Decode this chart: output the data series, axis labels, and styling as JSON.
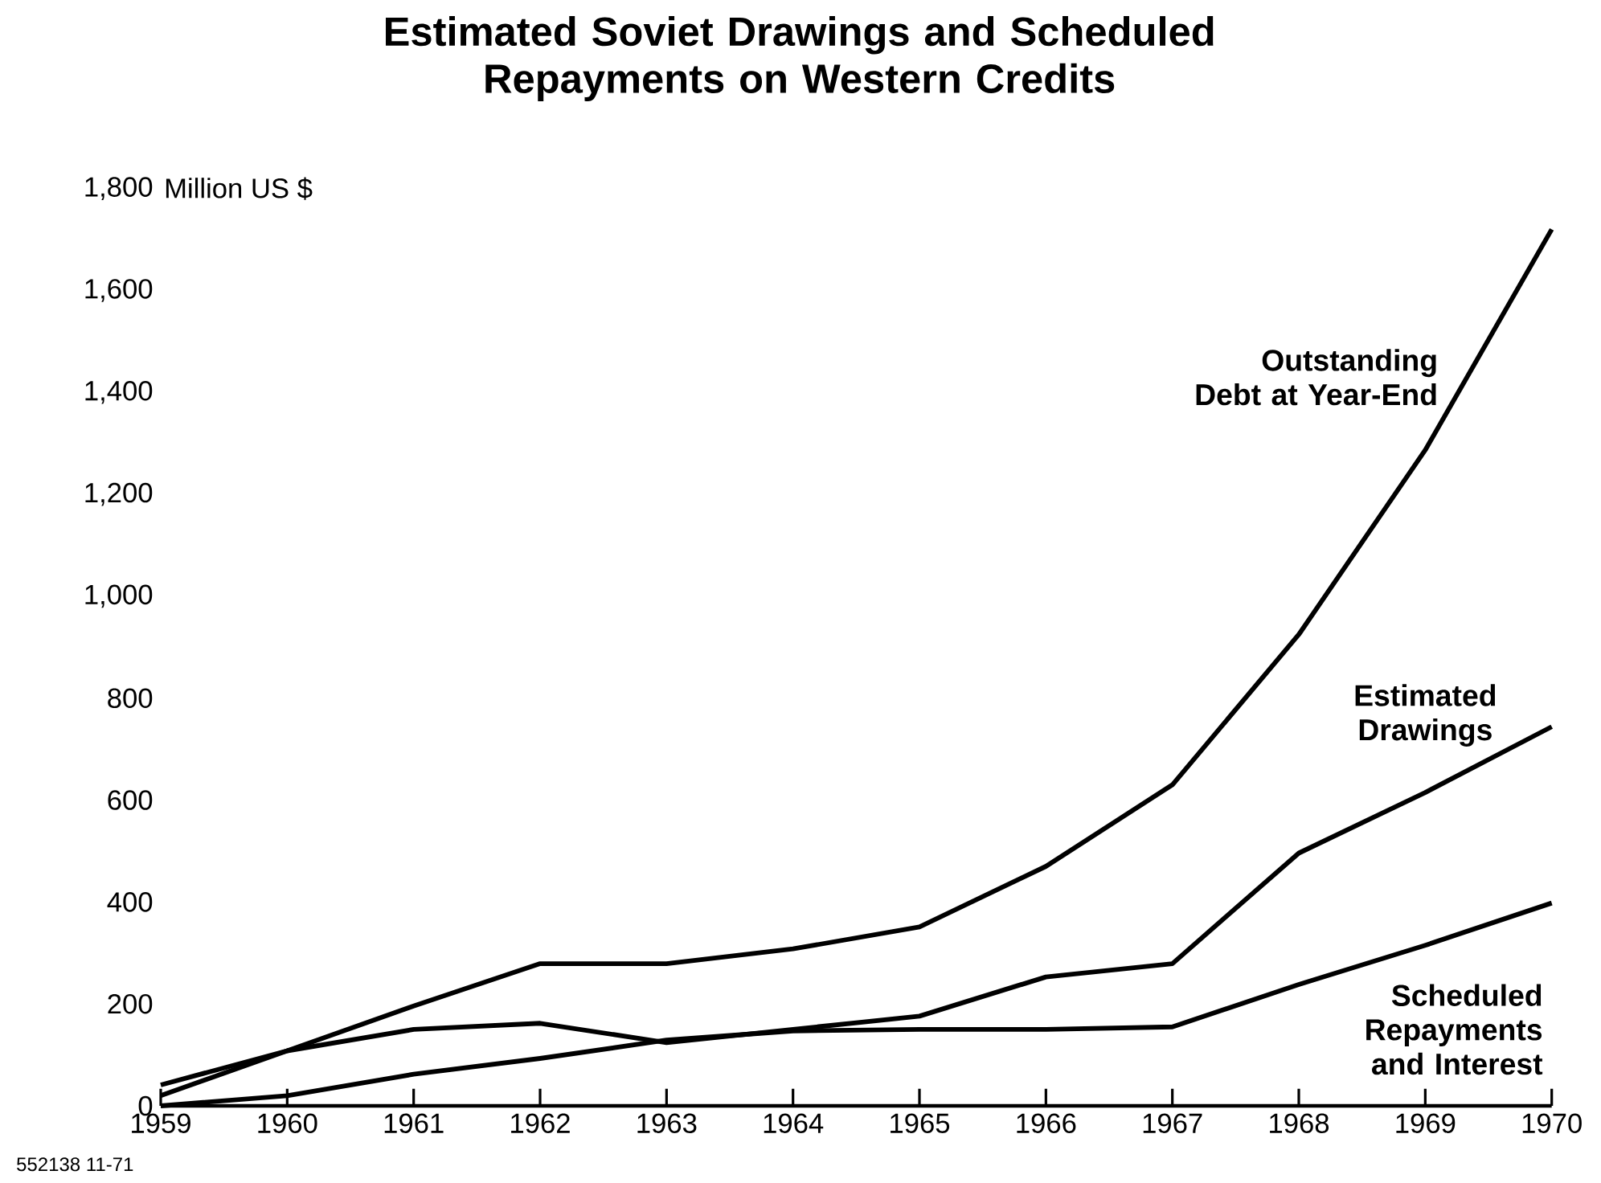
{
  "chart_data": {
    "type": "line",
    "title": "Estimated Soviet Drawings and Scheduled Repayments on Western Credits",
    "ylabel": "Million US $",
    "x": [
      1959,
      1960,
      1961,
      1962,
      1963,
      1964,
      1965,
      1966,
      1967,
      1968,
      1969,
      1970
    ],
    "series": [
      {
        "name": "Outstanding Debt at Year-End",
        "color": "#000000",
        "values": [
          41,
          108,
          196,
          279,
          279,
          308,
          351,
          470,
          630,
          925,
          1287,
          1720
        ]
      },
      {
        "name": "Estimated Drawings",
        "color": "#000000",
        "values": [
          20,
          108,
          150,
          162,
          124,
          150,
          176,
          253,
          279,
          496,
          615,
          744
        ]
      },
      {
        "name": "Scheduled Repayments and Interest",
        "color": "#000000",
        "values": [
          0,
          20,
          62,
          93,
          129,
          147,
          150,
          150,
          155,
          238,
          315,
          398
        ]
      }
    ],
    "xlim": [
      1959,
      1970
    ],
    "ylim": [
      0,
      1800
    ],
    "xticks": [
      1959,
      1960,
      1961,
      1962,
      1963,
      1964,
      1965,
      1966,
      1967,
      1968,
      1969,
      1970
    ],
    "yticks": [
      0,
      200,
      400,
      600,
      800,
      {
        "value": 1000,
        "label": "1,000"
      },
      {
        "value": 1200,
        "label": "1,200"
      },
      {
        "value": 1400,
        "label": "1,400"
      },
      {
        "value": 1600,
        "label": "1,600"
      },
      {
        "value": 1800,
        "label": "1,800"
      }
    ],
    "annotations": [
      "552138 11-71"
    ],
    "grid": false,
    "marker": "none",
    "line_style": "solid"
  }
}
